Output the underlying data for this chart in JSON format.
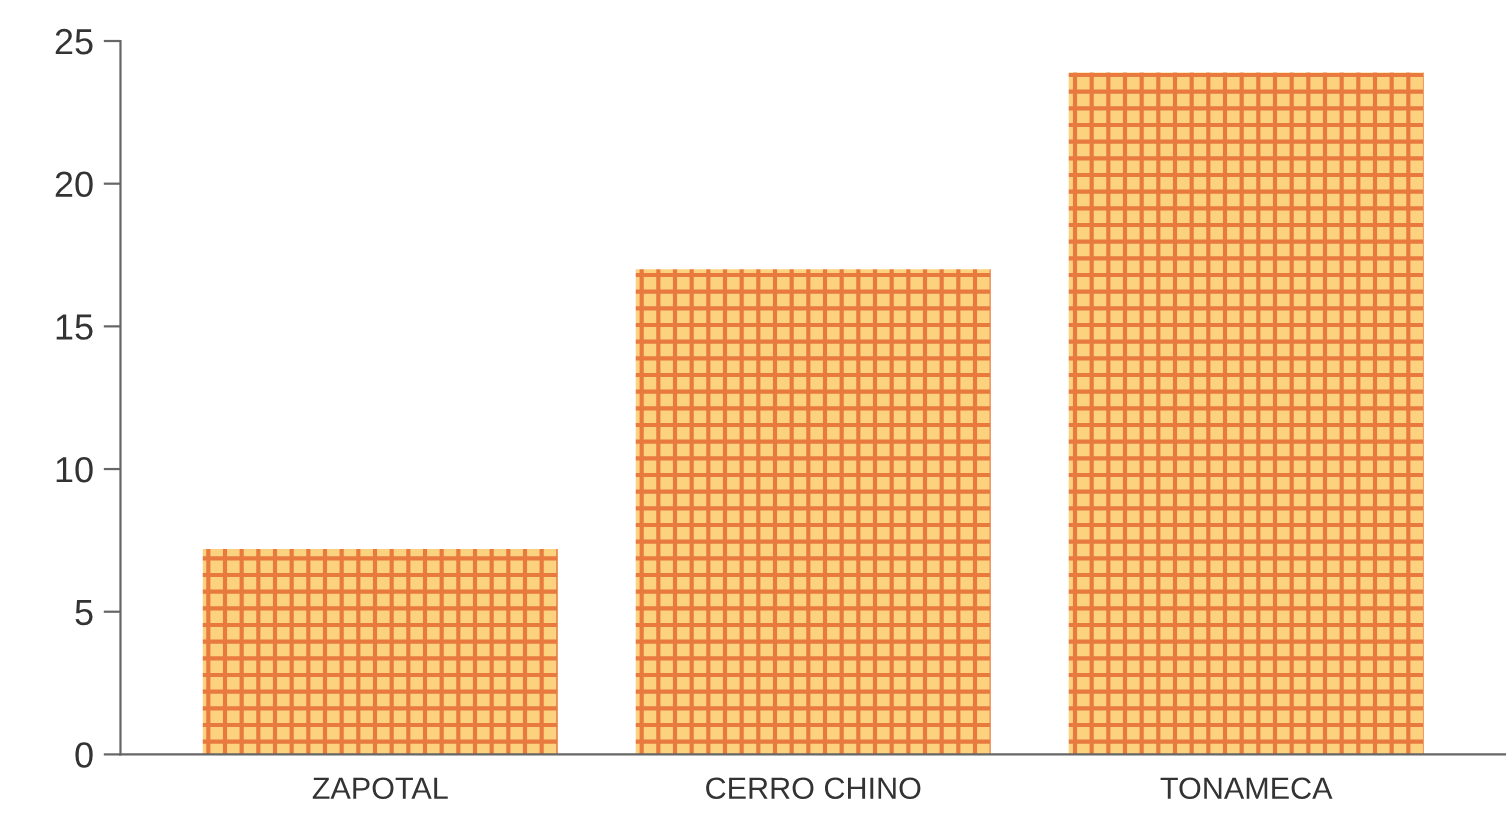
{
  "chart_data": {
    "type": "bar",
    "categories": [
      "ZAPOTAL",
      "CERRO CHINO",
      "TONAMECA"
    ],
    "values": [
      7.2,
      17.0,
      23.9
    ],
    "color": "#fdd27f",
    "ylim": [
      0,
      25
    ],
    "yticks": [
      0,
      5,
      10,
      15,
      20,
      25
    ],
    "grid": false,
    "legend": false
  }
}
